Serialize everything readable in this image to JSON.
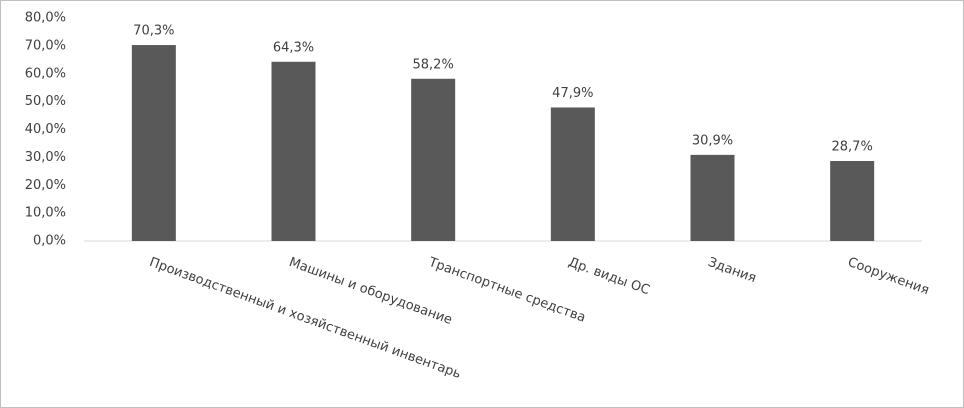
{
  "chart_data": {
    "type": "bar",
    "categories": [
      "Производственный и хозяйственный инвентарь",
      "Машины и оборудование",
      "Транспортные средства",
      "Др. виды ОС",
      "Здания",
      "Сооружения"
    ],
    "values": [
      70.3,
      64.3,
      58.2,
      47.9,
      30.9,
      28.7
    ],
    "value_labels": [
      "70,3%",
      "64,3%",
      "58,2%",
      "47,9%",
      "30,9%",
      "28,7%"
    ],
    "color": "#595959",
    "ylim": [
      0,
      80
    ],
    "yticks": [
      {
        "value": 0,
        "label": "0,0%"
      },
      {
        "value": 10,
        "label": "10,0%"
      },
      {
        "value": 20,
        "label": "20,0%"
      },
      {
        "value": 30,
        "label": "30,0%"
      },
      {
        "value": 40,
        "label": "40,0%"
      },
      {
        "value": 50,
        "label": "50,0%"
      },
      {
        "value": 60,
        "label": "60,0%"
      },
      {
        "value": 70,
        "label": "70,0%"
      },
      {
        "value": 80,
        "label": "80,0%"
      }
    ],
    "grid": false
  }
}
